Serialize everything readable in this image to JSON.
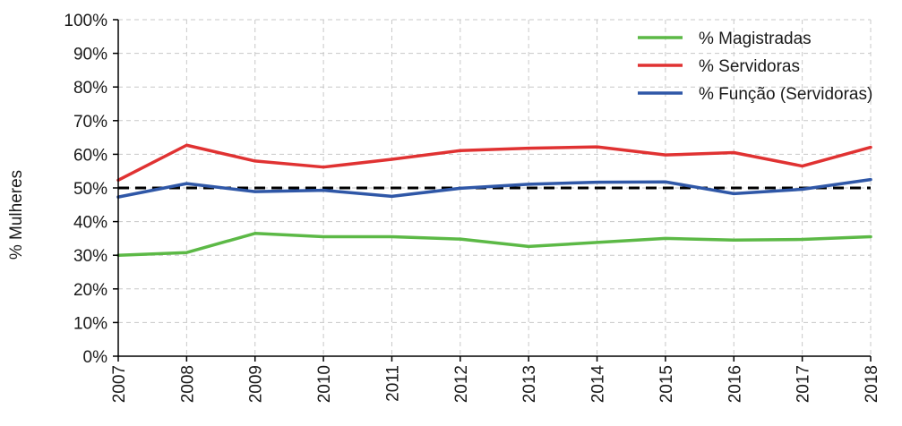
{
  "chart_data": {
    "type": "line",
    "title": "",
    "xlabel": "",
    "ylabel": "% Mulheres",
    "categories": [
      "2007",
      "2008",
      "2009",
      "2010",
      "2011",
      "2012",
      "2013",
      "2014",
      "2015",
      "2016",
      "2017",
      "2018"
    ],
    "ylim": [
      0,
      100
    ],
    "y_ticks": [
      "0%",
      "10%",
      "20%",
      "30%",
      "40%",
      "50%",
      "60%",
      "70%",
      "80%",
      "90%",
      "100%"
    ],
    "grid": true,
    "legend_position": "top-right",
    "reference_line": {
      "y": 50,
      "style": "dashed",
      "color": "#000000"
    },
    "series": [
      {
        "name": "% Magistradas",
        "color": "#5cb946",
        "values": [
          30,
          30.8,
          36.5,
          35.5,
          35.5,
          34.8,
          32.6,
          33.8,
          35,
          34.5,
          34.7,
          35.5
        ]
      },
      {
        "name": "% Servidoras",
        "color": "#e03232",
        "values": [
          52.3,
          62.7,
          58,
          56.2,
          58.5,
          61.1,
          61.8,
          62.2,
          59.8,
          60.5,
          56.5,
          62.1
        ]
      },
      {
        "name": "% Função (Servidoras)",
        "color": "#2f57a7",
        "values": [
          47.3,
          51.3,
          48.9,
          49.3,
          47.5,
          49.9,
          51.1,
          51.7,
          51.8,
          48.3,
          49.6,
          52.5
        ]
      }
    ]
  }
}
